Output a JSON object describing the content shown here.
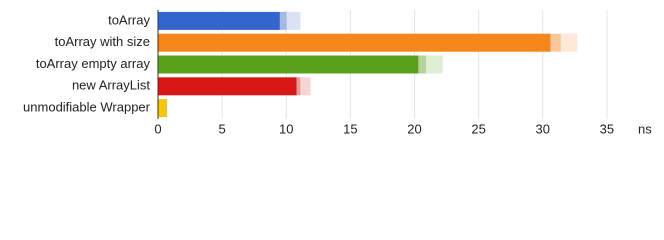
{
  "chart_data": {
    "type": "bar",
    "orientation": "horizontal",
    "categories": [
      "toArray",
      "toArray with size",
      "toArray empty array",
      "new ArrayList",
      "unmodifiable Wrapper"
    ],
    "values": [
      9.5,
      30.6,
      20.3,
      10.8,
      0.7
    ],
    "mid": [
      10.0,
      31.4,
      20.9,
      11.1,
      0.7
    ],
    "high": [
      11.1,
      32.7,
      22.2,
      11.9,
      0.75
    ],
    "colors": [
      "#3366cc",
      "#f5861a",
      "#5aa11b",
      "#d91616",
      "#f9c40c"
    ],
    "xlim": [
      0,
      36.8
    ],
    "xticks": [
      0,
      5,
      10,
      15,
      20,
      25,
      30,
      35
    ],
    "xlabel": "ns",
    "grid": true
  }
}
